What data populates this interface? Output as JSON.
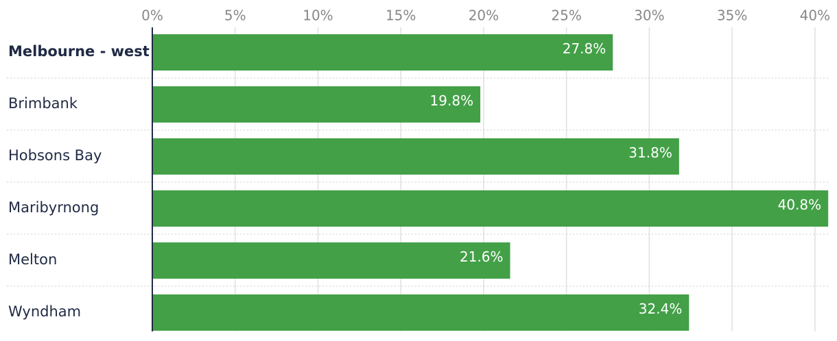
{
  "chart_data": {
    "type": "bar",
    "orientation": "horizontal",
    "categories": [
      "Melbourne - west",
      "Brimbank",
      "Hobsons Bay",
      "Maribyrnong",
      "Melton",
      "Wyndham"
    ],
    "values": [
      27.8,
      19.8,
      31.8,
      40.8,
      21.6,
      32.4
    ],
    "value_labels": [
      "27.8%",
      "19.8%",
      "31.8%",
      "40.8%",
      "21.6%",
      "32.4%"
    ],
    "color": "#43a047",
    "xlim": [
      0,
      41
    ],
    "xticks": [
      {
        "value": 0,
        "label": "0%"
      },
      {
        "value": 5,
        "label": "5%"
      },
      {
        "value": 10,
        "label": "10%"
      },
      {
        "value": 15,
        "label": "15%"
      },
      {
        "value": 20,
        "label": "20%"
      },
      {
        "value": 25,
        "label": "25%"
      },
      {
        "value": 30,
        "label": "30%"
      },
      {
        "value": 35,
        "label": "35%"
      },
      {
        "value": 40,
        "label": "40%"
      }
    ],
    "grid": true
  }
}
